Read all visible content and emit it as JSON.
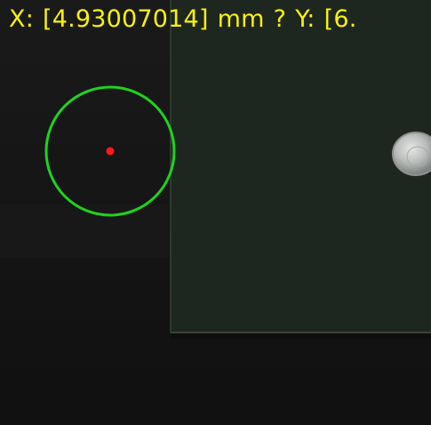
{
  "overlay": {
    "x_label": "X:",
    "x_value": "[4.93007014]",
    "x_unit": "mm",
    "separator": "?",
    "y_label": "Y:",
    "y_value": "[6."
  },
  "colors": {
    "readout_text": "#f7f20c",
    "tracking_circle": "#1fd21f",
    "center_marker": "#ff1a1a"
  },
  "icons": {
    "tracking_circle": "target-circle-icon",
    "center_marker": "center-dot-icon",
    "coin": "coin-icon"
  }
}
